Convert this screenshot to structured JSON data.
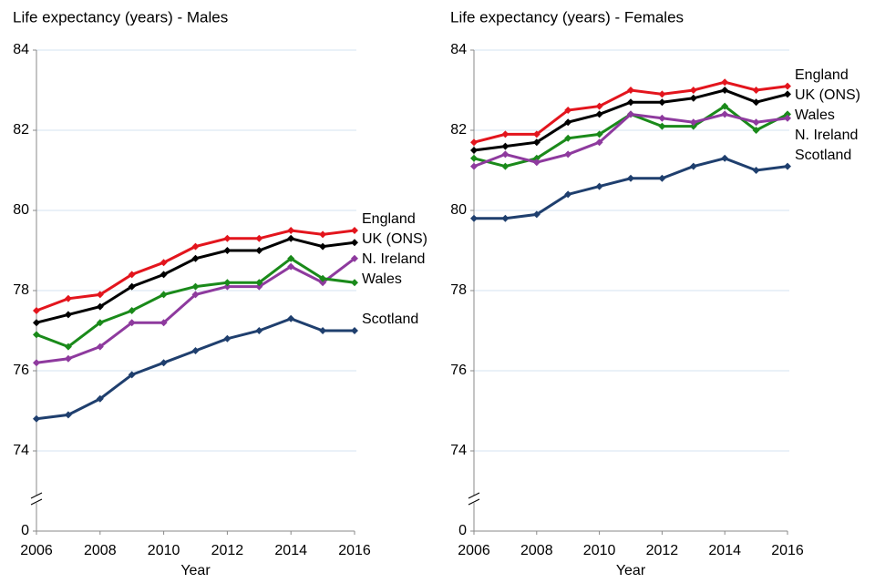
{
  "chart_data": [
    {
      "type": "line",
      "title": "Life expectancy (years) - Males",
      "x_label": "Year",
      "x": [
        2006,
        2007,
        2008,
        2009,
        2010,
        2011,
        2012,
        2013,
        2014,
        2015,
        2016
      ],
      "xlim": [
        2006,
        2016
      ],
      "xticks": [
        2006,
        2008,
        2010,
        2012,
        2014,
        2016
      ],
      "ylim": [
        0,
        84
      ],
      "yticks": [
        0,
        74,
        76,
        78,
        80,
        82,
        84
      ],
      "axis_break": true,
      "grid": true,
      "series": [
        {
          "name": "England",
          "color": "#e3151d",
          "values": [
            77.5,
            77.8,
            77.9,
            78.4,
            78.7,
            79.1,
            79.3,
            79.3,
            79.5,
            79.4,
            79.5
          ]
        },
        {
          "name": "UK (ONS)",
          "color": "#000000",
          "values": [
            77.2,
            77.4,
            77.6,
            78.1,
            78.4,
            78.8,
            79.0,
            79.0,
            79.3,
            79.1,
            79.2
          ]
        },
        {
          "name": "N. Ireland",
          "color": "#8e3a9e",
          "values": [
            76.2,
            76.3,
            76.6,
            77.2,
            77.2,
            77.9,
            78.1,
            78.1,
            78.6,
            78.2,
            78.8
          ]
        },
        {
          "name": "Wales",
          "color": "#1a8a1a",
          "values": [
            76.9,
            76.6,
            77.2,
            77.5,
            77.9,
            78.1,
            78.2,
            78.2,
            78.8,
            78.3,
            78.2
          ]
        },
        {
          "name": "Scotland",
          "color": "#1f3f6e",
          "values": [
            74.8,
            74.9,
            75.3,
            75.9,
            76.2,
            76.5,
            76.8,
            77.0,
            77.3,
            77.0,
            77.0
          ]
        }
      ]
    },
    {
      "type": "line",
      "title": "Life expectancy (years) - Females",
      "x_label": "Year",
      "x": [
        2006,
        2007,
        2008,
        2009,
        2010,
        2011,
        2012,
        2013,
        2014,
        2015,
        2016
      ],
      "xlim": [
        2006,
        2016
      ],
      "xticks": [
        2006,
        2008,
        2010,
        2012,
        2014,
        2016
      ],
      "ylim": [
        0,
        84
      ],
      "yticks": [
        0,
        74,
        76,
        78,
        80,
        82,
        84
      ],
      "axis_break": true,
      "grid": true,
      "series": [
        {
          "name": "England",
          "color": "#e3151d",
          "values": [
            81.7,
            81.9,
            81.9,
            82.5,
            82.6,
            83.0,
            82.9,
            83.0,
            83.2,
            83.0,
            83.1
          ]
        },
        {
          "name": "UK (ONS)",
          "color": "#000000",
          "values": [
            81.5,
            81.6,
            81.7,
            82.2,
            82.4,
            82.7,
            82.7,
            82.8,
            83.0,
            82.7,
            82.9
          ]
        },
        {
          "name": "Wales",
          "color": "#1a8a1a",
          "values": [
            81.3,
            81.1,
            81.3,
            81.8,
            81.9,
            82.4,
            82.1,
            82.1,
            82.6,
            82.0,
            82.4
          ]
        },
        {
          "name": "N. Ireland",
          "color": "#8e3a9e",
          "values": [
            81.1,
            81.4,
            81.2,
            81.4,
            81.7,
            82.4,
            82.3,
            82.2,
            82.4,
            82.2,
            82.3
          ]
        },
        {
          "name": "Scotland",
          "color": "#1f3f6e",
          "values": [
            79.8,
            79.8,
            79.9,
            80.4,
            80.6,
            80.8,
            80.8,
            81.1,
            81.3,
            81.0,
            81.1
          ]
        }
      ]
    }
  ]
}
